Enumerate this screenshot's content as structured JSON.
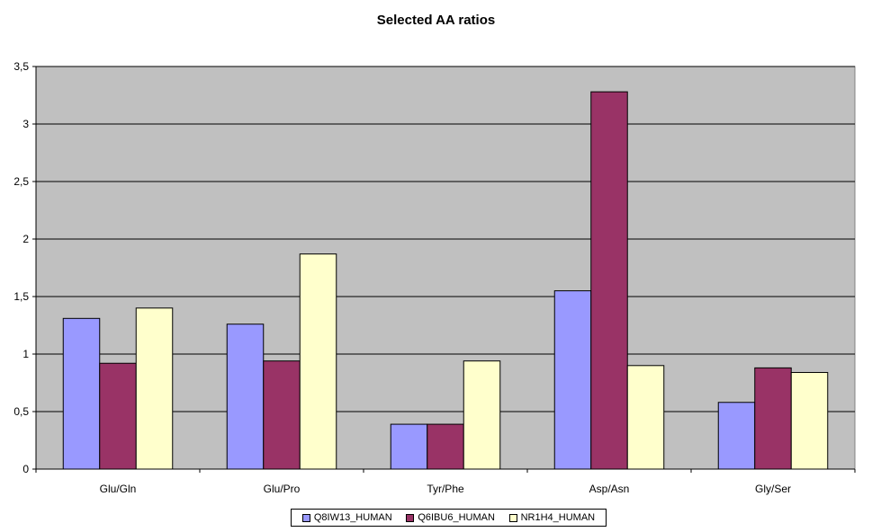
{
  "chart_data": {
    "type": "bar",
    "title": "Selected AA ratios",
    "xlabel": "",
    "ylabel": "",
    "categories": [
      "Glu/Gln",
      "Glu/Pro",
      "Tyr/Phe",
      "Asp/Asn",
      "Gly/Ser"
    ],
    "series": [
      {
        "name": "Q8IW13_HUMAN",
        "color": "#9999ff",
        "values": [
          1.31,
          1.26,
          0.39,
          1.55,
          0.58
        ]
      },
      {
        "name": "Q6IBU6_HUMAN",
        "color": "#993366",
        "values": [
          0.92,
          0.94,
          0.39,
          3.28,
          0.88
        ]
      },
      {
        "name": "NR1H4_HUMAN",
        "color": "#ffffcc",
        "values": [
          1.4,
          1.87,
          0.94,
          0.9,
          0.84
        ]
      }
    ],
    "ylim": [
      0,
      3.5
    ],
    "yticks": [
      0,
      0.5,
      1,
      1.5,
      2,
      2.5,
      3,
      3.5
    ],
    "ytick_labels": [
      "0",
      "0,5",
      "1",
      "1,5",
      "2",
      "2,5",
      "3",
      "3,5"
    ],
    "grid": true,
    "legend_position": "bottom",
    "plot_background": "#c0c0c0"
  }
}
